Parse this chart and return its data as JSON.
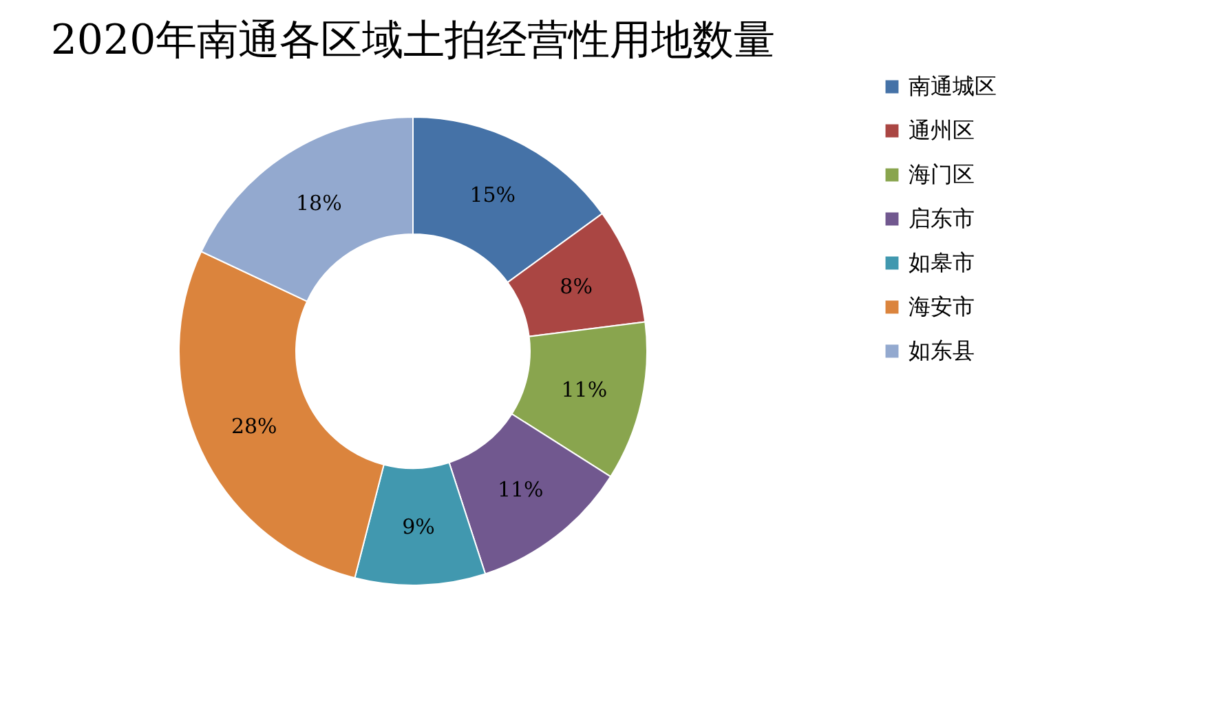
{
  "chart_data": {
    "type": "donut",
    "title": "2020年南通各区域土拍经营性用地数量",
    "categories": [
      "南通城区",
      "通州区",
      "海门区",
      "启东市",
      "如皋市",
      "海安市",
      "如东县"
    ],
    "values": [
      15,
      8,
      11,
      11,
      9,
      28,
      18
    ],
    "value_labels": [
      "15%",
      "8%",
      "11%",
      "11%",
      "9%",
      "28%",
      "18%"
    ],
    "colors": [
      "#4572a7",
      "#aa4643",
      "#89a54e",
      "#71588f",
      "#4198af",
      "#db843d",
      "#93a9cf"
    ],
    "legend": "right"
  }
}
